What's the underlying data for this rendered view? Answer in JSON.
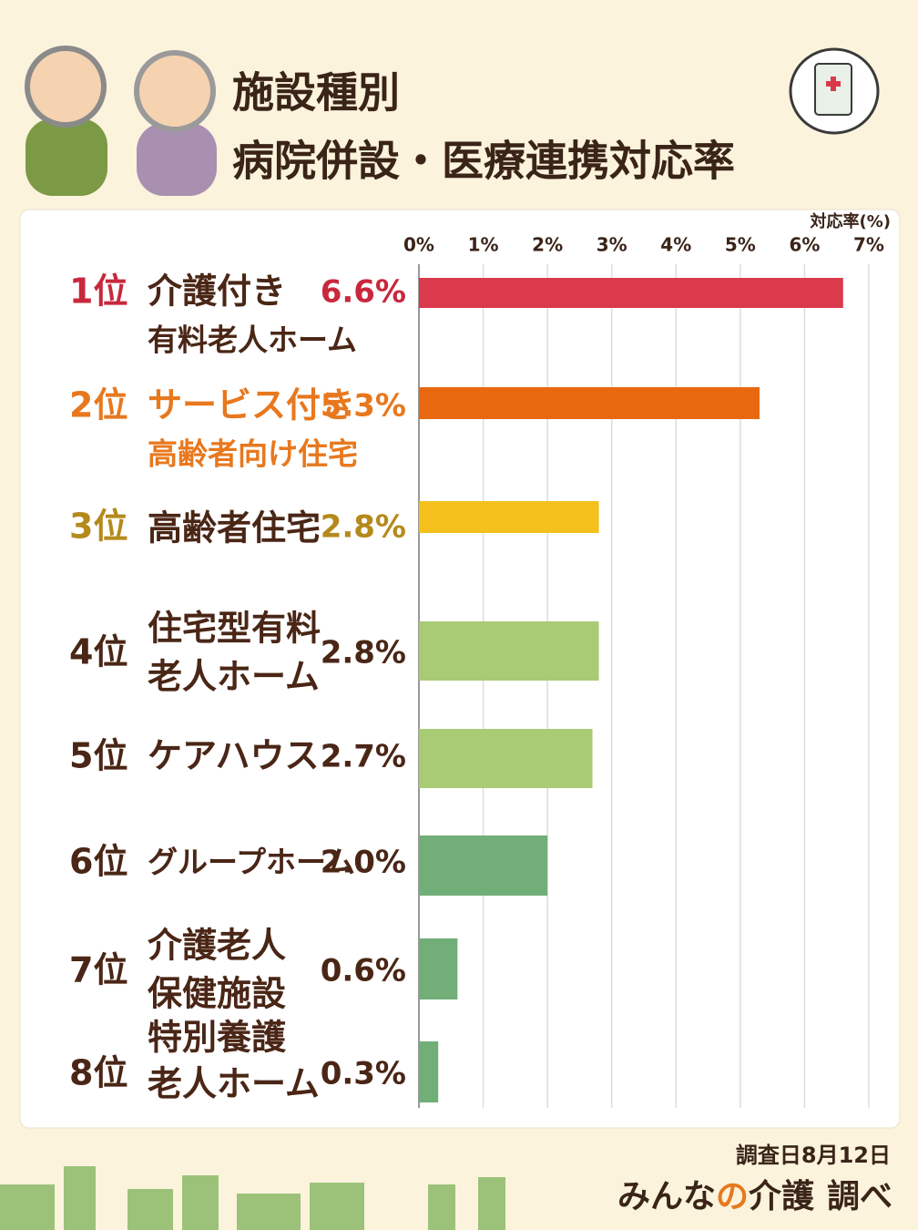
{
  "chart_data": {
    "type": "bar",
    "orientation": "horizontal",
    "title": [
      "施設種別",
      "病院併設・医療連携対応率"
    ],
    "x_label": "対応率(%)",
    "ranks": [
      "1位",
      "2位",
      "3位",
      "4位",
      "5位",
      "6位",
      "7位",
      "8位"
    ],
    "categories": [
      [
        "介護付き",
        "有料老人ホーム"
      ],
      [
        "サービス付き",
        "高齢者向け住宅"
      ],
      [
        "高齢者住宅"
      ],
      [
        "住宅型有料",
        "老人ホーム"
      ],
      [
        "ケアハウス"
      ],
      [
        "グループホーム"
      ],
      [
        "介護老人",
        "保健施設"
      ],
      [
        "特別養護",
        "老人ホーム"
      ]
    ],
    "values": [
      6.6,
      5.3,
      2.8,
      2.8,
      2.7,
      2.0,
      0.6,
      0.3
    ],
    "value_labels": [
      "6.6%",
      "5.3%",
      "2.8%",
      "2.8%",
      "2.7%",
      "2.0%",
      "0.6%",
      "0.3%"
    ],
    "colors": [
      "#da3a4c",
      "#e8680f",
      "#f3c01c",
      "#a9cb76",
      "#a9cb76",
      "#72ae78",
      "#72ae78",
      "#72ae78"
    ],
    "rank_colors": [
      "#c8283c",
      "#e8781e",
      "#b48a1c",
      "#4a2616",
      "#4a2616",
      "#4a2616",
      "#4a2616",
      "#4a2616"
    ],
    "category_colors": [
      "#4a2616",
      "#e8781e",
      "#4a2616",
      "#4a2616",
      "#4a2616",
      "#4a2616",
      "#4a2616",
      "#4a2616"
    ],
    "value_label_colors": [
      "#c8283c",
      "#e8781e",
      "#b48a1c",
      "#4a2616",
      "#4a2616",
      "#4a2616",
      "#4a2616",
      "#4a2616"
    ],
    "xlim": [
      0,
      7
    ],
    "xticks": [
      {
        "value": 0,
        "label": "0%"
      },
      {
        "value": 1,
        "label": "1%"
      },
      {
        "value": 2,
        "label": "2%"
      },
      {
        "value": 3,
        "label": "3%"
      },
      {
        "value": 4,
        "label": "4%"
      },
      {
        "value": 5,
        "label": "5%"
      },
      {
        "value": 6,
        "label": "6%"
      },
      {
        "value": 7,
        "label": "7%"
      }
    ],
    "grid": true,
    "survey_date": "調査日8月12日",
    "source": [
      "みんな",
      "の",
      "介護",
      "調べ"
    ]
  }
}
